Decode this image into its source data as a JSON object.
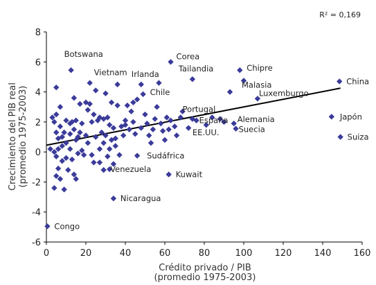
{
  "chart_data": {
    "type": "scatter",
    "xlabel_line1": "Crédito privado / PIB",
    "xlabel_line2": "(promedio 1975-2003)",
    "ylabel_line1": "Crecimiento del PIB real",
    "ylabel_line2": "(promedio 1975-2003)",
    "annotation": "R² = 0,169",
    "xlim": [
      0,
      160
    ],
    "ylim": [
      -6,
      8
    ],
    "xticks": [
      0,
      20,
      40,
      60,
      80,
      100,
      120,
      140,
      160
    ],
    "yticks": [
      -6,
      -4,
      -2,
      0,
      2,
      4,
      6,
      8
    ],
    "grid": false,
    "marker_color": "#3b3b9a",
    "line_color": "#000000",
    "trendline": {
      "x0": 0,
      "y0": 0.45,
      "x1": 149,
      "y1": 4.25
    },
    "labeled_points": [
      {
        "label": "Botswana",
        "x": 12.5,
        "y": 5.45
      },
      {
        "label": "Corea",
        "x": 63,
        "y": 6.0
      },
      {
        "label": "Vietnam",
        "x": 22,
        "y": 4.6
      },
      {
        "label": "Irlanda",
        "x": 48,
        "y": 4.5
      },
      {
        "label": "Tailandia",
        "x": 74,
        "y": 4.85
      },
      {
        "label": "Chipre",
        "x": 98,
        "y": 5.45
      },
      {
        "label": "Chile",
        "x": 49,
        "y": 3.85
      },
      {
        "label": "Malasia",
        "x": 100,
        "y": 4.75
      },
      {
        "label": "China",
        "x": 148.5,
        "y": 4.7
      },
      {
        "label": "Luxemburgo",
        "x": 107,
        "y": 3.55
      },
      {
        "label": "Portugal",
        "x": 69,
        "y": 2.7
      },
      {
        "label": "España",
        "x": 76,
        "y": 2.1
      },
      {
        "label": "Alemania",
        "x": 95,
        "y": 1.9
      },
      {
        "label": "EE.UU.",
        "x": 81,
        "y": 1.8
      },
      {
        "label": "Suecia",
        "x": 96,
        "y": 1.55
      },
      {
        "label": "Japón",
        "x": 144.5,
        "y": 2.35
      },
      {
        "label": "Suiza",
        "x": 149,
        "y": 1.0
      },
      {
        "label": "Sudáfrica",
        "x": 46,
        "y": -0.25
      },
      {
        "label": "Venezuela",
        "x": 32,
        "y": -1.15
      },
      {
        "label": "Kuwait",
        "x": 62,
        "y": -1.5
      },
      {
        "label": "Nicaragua",
        "x": 34,
        "y": -3.1
      },
      {
        "label": "Congo",
        "x": 0.5,
        "y": -4.95
      }
    ],
    "points": [
      {
        "x": 2,
        "y": 0.2
      },
      {
        "x": 3,
        "y": 2.3
      },
      {
        "x": 4,
        "y": 2.0
      },
      {
        "x": 4,
        "y": 0.0
      },
      {
        "x": 5,
        "y": 4.3
      },
      {
        "x": 5,
        "y": 2.5
      },
      {
        "x": 5,
        "y": 1.3
      },
      {
        "x": 5,
        "y": -0.3
      },
      {
        "x": 5,
        "y": -1.6
      },
      {
        "x": 4,
        "y": -2.4
      },
      {
        "x": 6,
        "y": 0.9
      },
      {
        "x": 6,
        "y": 0.2
      },
      {
        "x": 6,
        "y": -1.1
      },
      {
        "x": 7,
        "y": 3.0
      },
      {
        "x": 7,
        "y": 1.7
      },
      {
        "x": 7,
        "y": -1.8
      },
      {
        "x": 8,
        "y": 1.0
      },
      {
        "x": 8,
        "y": 0.4
      },
      {
        "x": 8,
        "y": -0.6
      },
      {
        "x": 9,
        "y": 1.3
      },
      {
        "x": 9,
        "y": -2.5
      },
      {
        "x": 10,
        "y": 2.1
      },
      {
        "x": 10,
        "y": 0.6
      },
      {
        "x": 10,
        "y": -0.4
      },
      {
        "x": 11,
        "y": -1.2
      },
      {
        "x": 12,
        "y": 1.9
      },
      {
        "x": 12,
        "y": 1.2
      },
      {
        "x": 12,
        "y": 0.2
      },
      {
        "x": 13,
        "y": 2.0
      },
      {
        "x": 13,
        "y": -0.5
      },
      {
        "x": 14,
        "y": 3.6
      },
      {
        "x": 14,
        "y": 1.5
      },
      {
        "x": 14,
        "y": -1.5
      },
      {
        "x": 15,
        "y": 2.1
      },
      {
        "x": 15,
        "y": 0.8
      },
      {
        "x": 15,
        "y": -1.8
      },
      {
        "x": 16,
        "y": 1.0
      },
      {
        "x": 16,
        "y": -0.1
      },
      {
        "x": 17,
        "y": 3.2
      },
      {
        "x": 17,
        "y": 1.3
      },
      {
        "x": 18,
        "y": 1.9
      },
      {
        "x": 18,
        "y": 0.1
      },
      {
        "x": 19,
        "y": -0.2
      },
      {
        "x": 20,
        "y": 3.3
      },
      {
        "x": 20,
        "y": 1.1
      },
      {
        "x": 21,
        "y": 2.8
      },
      {
        "x": 21,
        "y": 0.6
      },
      {
        "x": 22,
        "y": 3.2
      },
      {
        "x": 23,
        "y": 2.0
      },
      {
        "x": 23,
        "y": -0.2
      },
      {
        "x": 24,
        "y": 2.5
      },
      {
        "x": 24,
        "y": -0.7
      },
      {
        "x": 25,
        "y": 4.1
      },
      {
        "x": 25,
        "y": 1.0
      },
      {
        "x": 26,
        "y": 2.1
      },
      {
        "x": 27,
        "y": 2.3
      },
      {
        "x": 27,
        "y": 0.2
      },
      {
        "x": 27,
        "y": -0.7
      },
      {
        "x": 28,
        "y": 1.3
      },
      {
        "x": 29,
        "y": 2.2
      },
      {
        "x": 29,
        "y": 0.6
      },
      {
        "x": 29,
        "y": -1.2
      },
      {
        "x": 30,
        "y": 1.1
      },
      {
        "x": 30,
        "y": 3.9
      },
      {
        "x": 31,
        "y": 2.3
      },
      {
        "x": 31,
        "y": -0.3
      },
      {
        "x": 32,
        "y": 1.8
      },
      {
        "x": 32,
        "y": 0.2
      },
      {
        "x": 33,
        "y": 3.3
      },
      {
        "x": 33,
        "y": 0.8
      },
      {
        "x": 34,
        "y": 1.6
      },
      {
        "x": 34,
        "y": -0.8
      },
      {
        "x": 35,
        "y": 0.9
      },
      {
        "x": 35,
        "y": 0.4
      },
      {
        "x": 36,
        "y": 4.5
      },
      {
        "x": 36,
        "y": 3.1
      },
      {
        "x": 37,
        "y": -0.2
      },
      {
        "x": 38,
        "y": 1.7
      },
      {
        "x": 39,
        "y": 1.1
      },
      {
        "x": 40,
        "y": 2.1
      },
      {
        "x": 40,
        "y": 1.8
      },
      {
        "x": 41,
        "y": 3.1
      },
      {
        "x": 42,
        "y": 1.5
      },
      {
        "x": 43,
        "y": 2.7
      },
      {
        "x": 44,
        "y": 3.3
      },
      {
        "x": 44,
        "y": 2.0
      },
      {
        "x": 45,
        "y": 1.2
      },
      {
        "x": 46,
        "y": 3.5
      },
      {
        "x": 48,
        "y": 1.6
      },
      {
        "x": 50,
        "y": 2.5
      },
      {
        "x": 51,
        "y": 1.9
      },
      {
        "x": 52,
        "y": 1.1
      },
      {
        "x": 53,
        "y": 0.6
      },
      {
        "x": 54,
        "y": 1.5
      },
      {
        "x": 55,
        "y": 2.2
      },
      {
        "x": 56,
        "y": 3.0
      },
      {
        "x": 57,
        "y": 4.6
      },
      {
        "x": 58,
        "y": 1.9
      },
      {
        "x": 59,
        "y": 1.4
      },
      {
        "x": 60,
        "y": 0.8
      },
      {
        "x": 61,
        "y": 2.3
      },
      {
        "x": 62,
        "y": 1.5
      },
      {
        "x": 63,
        "y": 2.1
      },
      {
        "x": 65,
        "y": 1.7
      },
      {
        "x": 66,
        "y": 1.1
      },
      {
        "x": 68,
        "y": 2.3
      },
      {
        "x": 72,
        "y": 1.6
      },
      {
        "x": 74,
        "y": 2.2
      },
      {
        "x": 84,
        "y": 2.3
      },
      {
        "x": 88,
        "y": 2.2
      },
      {
        "x": 90,
        "y": 2.0
      },
      {
        "x": 93,
        "y": 4.0
      }
    ]
  }
}
